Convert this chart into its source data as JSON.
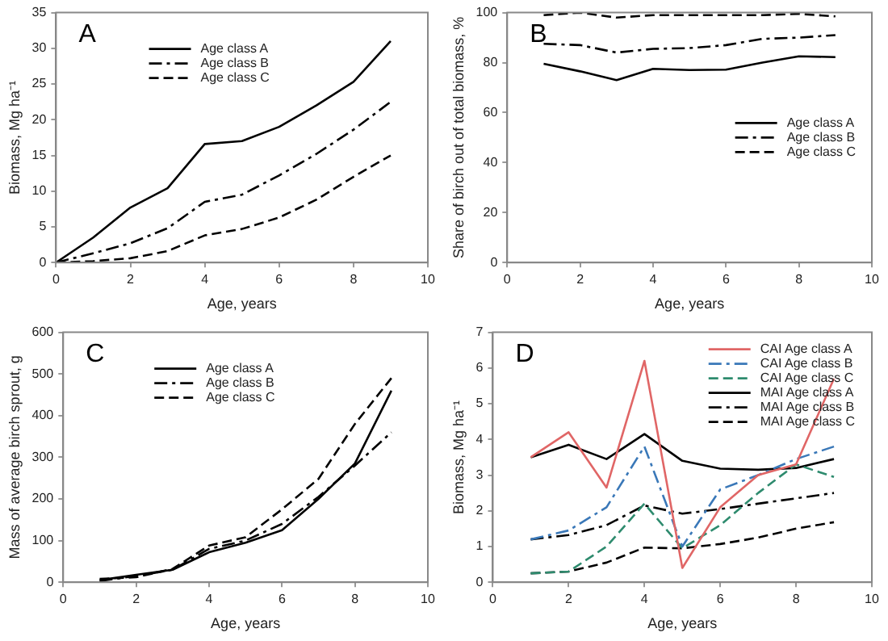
{
  "chart_data": [
    {
      "type": "line",
      "title": "A",
      "xlabel": "Age, years",
      "ylabel": "Biomass, Mg ha⁻¹",
      "xlim": [
        0,
        10
      ],
      "xticks": [
        0,
        2,
        4,
        6,
        8,
        10
      ],
      "ylim": [
        0,
        35
      ],
      "yticks": [
        0,
        5,
        10,
        15,
        20,
        25,
        30,
        35
      ],
      "grid": false,
      "legend": "top left",
      "marker": "none",
      "x": [
        0,
        1,
        2,
        3,
        4,
        5,
        6,
        7,
        8,
        9
      ],
      "series": [
        {
          "name": "Age class A",
          "color": "#000000",
          "line_style": "solid",
          "values": [
            0,
            3.5,
            7.7,
            10.4,
            16.6,
            17,
            19,
            22,
            25.3,
            31
          ]
        },
        {
          "name": "Age class B",
          "color": "#000000",
          "line_style": "dashdot",
          "values": [
            0,
            1.3,
            2.7,
            4.8,
            8.5,
            9.5,
            12.2,
            15.2,
            18.6,
            22.5
          ]
        },
        {
          "name": "Age class C",
          "color": "#000000",
          "line_style": "dashed",
          "values": [
            0,
            0.2,
            0.6,
            1.6,
            3.8,
            4.7,
            6.3,
            8.8,
            12,
            15
          ]
        }
      ]
    },
    {
      "type": "line",
      "title": "B",
      "xlabel": "Age, years",
      "ylabel": "Share of birch out of total biomass, %",
      "xlim": [
        0,
        10
      ],
      "xticks": [
        0,
        2,
        4,
        6,
        8,
        10
      ],
      "ylim": [
        0,
        100
      ],
      "yticks": [
        0,
        20,
        40,
        60,
        80,
        100
      ],
      "grid": false,
      "legend": "right",
      "marker": "none",
      "x": [
        1,
        2,
        3,
        4,
        5,
        6,
        7,
        8,
        9
      ],
      "series": [
        {
          "name": "Age class A",
          "color": "#000000",
          "line_style": "solid",
          "values": [
            79.5,
            76.5,
            73,
            77.5,
            77,
            77.2,
            80,
            82.5,
            82.2
          ]
        },
        {
          "name": "Age class B",
          "color": "#000000",
          "line_style": "dashdot",
          "values": [
            87.5,
            87,
            84,
            85.5,
            85.8,
            87,
            89.5,
            90,
            91
          ]
        },
        {
          "name": "Age class C",
          "color": "#000000",
          "line_style": "dashed",
          "values": [
            99,
            100,
            98,
            99,
            99,
            99,
            99,
            99.5,
            98.5
          ]
        }
      ]
    },
    {
      "type": "line",
      "title": "C",
      "xlabel": "Age, years",
      "ylabel": "Mass of average birch sprout, g",
      "xlim": [
        0,
        10
      ],
      "xticks": [
        0,
        2,
        4,
        6,
        8,
        10
      ],
      "ylim": [
        0,
        600
      ],
      "yticks": [
        0,
        100,
        200,
        300,
        400,
        500,
        600
      ],
      "grid": false,
      "legend": "top left",
      "marker": "none",
      "x": [
        1,
        2,
        3,
        4,
        5,
        6,
        7,
        8,
        9
      ],
      "series": [
        {
          "name": "Age class A",
          "color": "#000000",
          "line_style": "solid",
          "values": [
            5,
            18,
            30,
            72,
            95,
            125,
            200,
            285,
            460
          ]
        },
        {
          "name": "Age class B",
          "color": "#000000",
          "line_style": "dashdot",
          "values": [
            3,
            15,
            30,
            80,
            100,
            140,
            205,
            280,
            360
          ]
        },
        {
          "name": "Age class C",
          "color": "#000000",
          "line_style": "dashed",
          "values": [
            8,
            12,
            32,
            88,
            108,
            175,
            248,
            380,
            490
          ]
        }
      ]
    },
    {
      "type": "line",
      "title": "D",
      "xlabel": "Age, years",
      "ylabel": "Biomass, Mg ha⁻¹",
      "xlim": [
        0,
        10
      ],
      "xticks": [
        0,
        2,
        4,
        6,
        8,
        10
      ],
      "ylim": [
        0,
        7
      ],
      "yticks": [
        0,
        1,
        2,
        3,
        4,
        5,
        6,
        7
      ],
      "grid": false,
      "legend": "top right",
      "marker": "none",
      "x": [
        1,
        2,
        3,
        4,
        5,
        6,
        7,
        8,
        9
      ],
      "series": [
        {
          "name": "CAI Age class A",
          "color": "#e06666",
          "line_style": "solid",
          "values": [
            3.5,
            4.2,
            2.65,
            6.2,
            0.4,
            2.1,
            3.0,
            3.3,
            5.7
          ]
        },
        {
          "name": "CAI Age class B",
          "color": "#3a78b8",
          "line_style": "dashdot",
          "values": [
            1.2,
            1.45,
            2.1,
            3.8,
            1.0,
            2.6,
            3.0,
            3.45,
            3.8
          ]
        },
        {
          "name": "CAI Age class C",
          "color": "#2e8b6e",
          "line_style": "dashed",
          "values": [
            0.25,
            0.3,
            1.0,
            2.2,
            0.95,
            1.6,
            2.5,
            3.3,
            2.95
          ]
        },
        {
          "name": "MAI Age class A",
          "color": "#000000",
          "line_style": "solid",
          "values": [
            3.5,
            3.85,
            3.45,
            4.15,
            3.4,
            3.18,
            3.15,
            3.2,
            3.45
          ]
        },
        {
          "name": "MAI Age class B",
          "color": "#000000",
          "line_style": "dashdot",
          "values": [
            1.2,
            1.32,
            1.6,
            2.15,
            1.92,
            2.05,
            2.2,
            2.35,
            2.5
          ]
        },
        {
          "name": "MAI Age class C",
          "color": "#000000",
          "line_style": "dashed",
          "values": [
            0.25,
            0.3,
            0.55,
            0.97,
            0.95,
            1.07,
            1.25,
            1.5,
            1.68
          ]
        }
      ]
    }
  ]
}
